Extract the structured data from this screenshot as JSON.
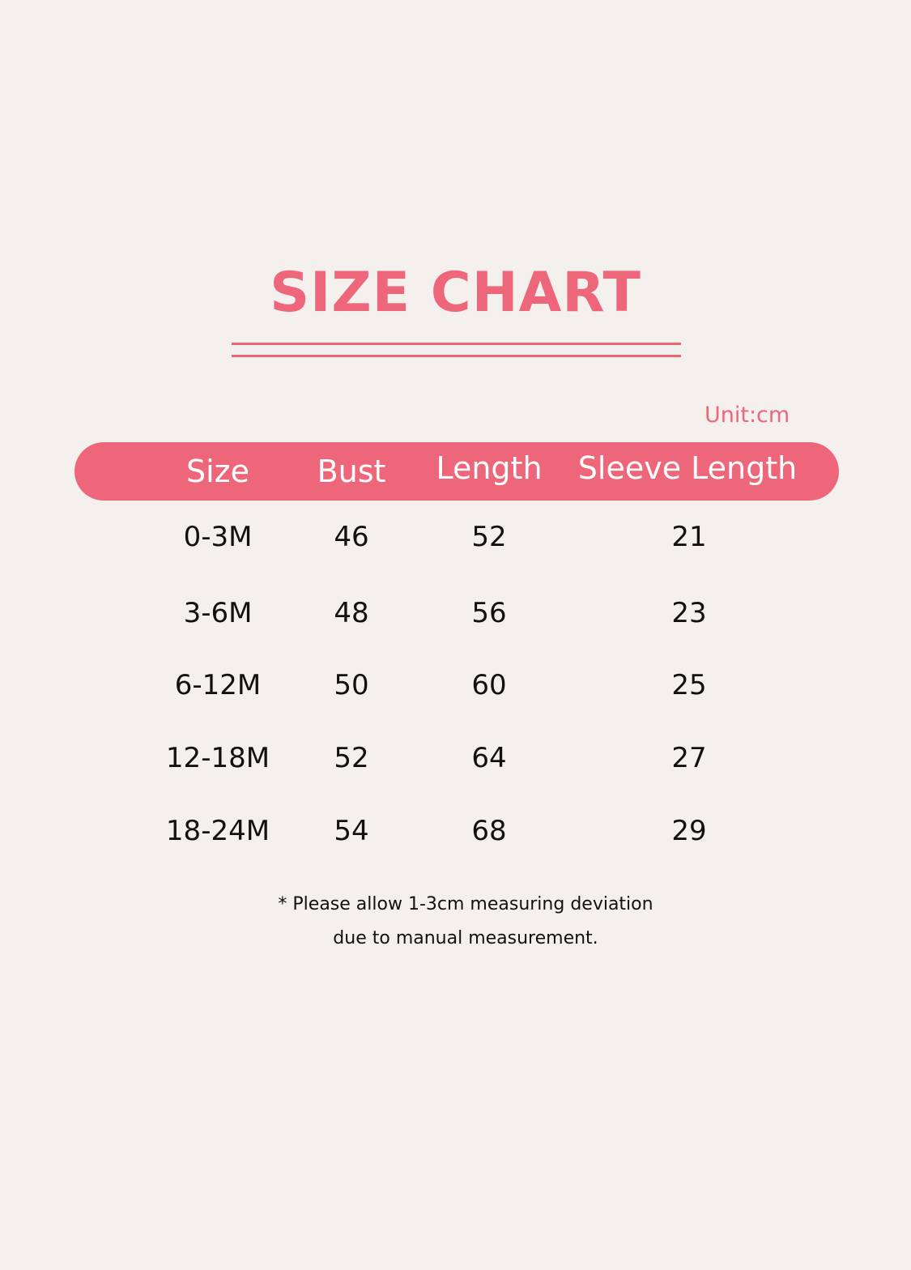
{
  "title": "SIZE CHART",
  "unit": "Unit:cm",
  "accent_color": "#ee6679",
  "columns": [
    "Size",
    "Bust",
    "Length",
    "Sleeve Length"
  ],
  "rows": [
    [
      "0-3M",
      "46",
      "52",
      "21"
    ],
    [
      "3-6M",
      "48",
      "56",
      "23"
    ],
    [
      "6-12M",
      "50",
      "60",
      "25"
    ],
    [
      "12-18M",
      "52",
      "64",
      "27"
    ],
    [
      "18-24M",
      "54",
      "68",
      "29"
    ]
  ],
  "note": [
    "* Please allow 1-3cm measuring deviation",
    "due to manual measurement."
  ]
}
